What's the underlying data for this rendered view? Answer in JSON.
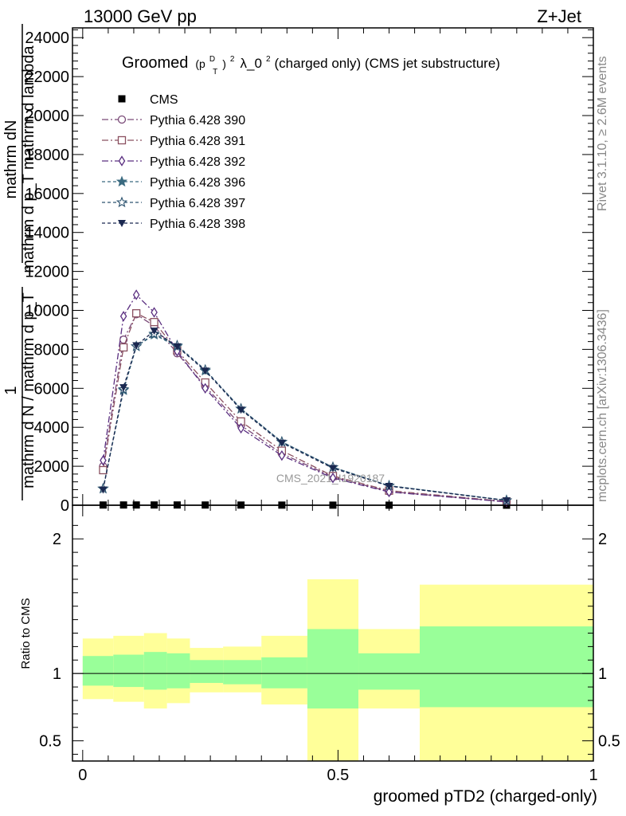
{
  "header": {
    "left": "13000 GeV pp",
    "right": "Z+Jet"
  },
  "side_labels": {
    "rivet": "Rivet 3.1.10, ≥ 2.6M events",
    "mcplots": "mcplots.cern.ch [arXiv:1306.3436]"
  },
  "watermark": "CMS_2021_I1920187",
  "chart_data": [
    {
      "type": "line",
      "title": {
        "prefix": "Groomed",
        "math_p": "(p",
        "math_sup_d": "D",
        "math_sub_t": "T",
        "math_close": ")",
        "math_sup_2": "2",
        "math_lambda": "λ_0",
        "math_sup_2b": "2",
        "suffix": " (charged only) (CMS jet substructure)"
      },
      "ylabel_parts": {
        "numerator": "mathrm dN",
        "denominator": "mathrm d p_T mathrm d lambda",
        "prefactor_num": "1",
        "prefactor_den": "mathrm d N / mathrm d p_T"
      },
      "ylim": [
        0,
        24500
      ],
      "yticks": [
        0,
        2000,
        4000,
        6000,
        8000,
        10000,
        12000,
        14000,
        16000,
        18000,
        20000,
        22000,
        24000
      ],
      "ytick_labels": [
        "0",
        "2000",
        "4000",
        "6000",
        "8000",
        "10000",
        "12000",
        "14000",
        "16000",
        "18000",
        "20000",
        "22000",
        "24000"
      ],
      "xlim": [
        -0.02,
        1.0
      ],
      "x": [
        0.04,
        0.08,
        0.105,
        0.14,
        0.185,
        0.24,
        0.31,
        0.39,
        0.49,
        0.6,
        0.83
      ],
      "series": [
        {
          "name": "CMS",
          "marker": "filled-square",
          "color": "#000000",
          "dash": "",
          "values": [
            10,
            12,
            12,
            12,
            12,
            10,
            8,
            6,
            4,
            2,
            1
          ]
        },
        {
          "name": "Pythia 6.428 390",
          "marker": "open-circle",
          "color": "#7a4a78",
          "dash": "8,3,2,3",
          "values": [
            2000,
            8500,
            9800,
            9200,
            7800,
            6100,
            4100,
            2650,
            1450,
            700,
            180
          ]
        },
        {
          "name": "Pythia 6.428 391",
          "marker": "open-square",
          "color": "#8a5060",
          "dash": "8,3,2,3",
          "values": [
            1800,
            8100,
            9850,
            9400,
            7950,
            6300,
            4300,
            2800,
            1500,
            750,
            190
          ]
        },
        {
          "name": "Pythia 6.428 392",
          "marker": "open-diamond",
          "color": "#5a2e80",
          "dash": "8,3,2,3",
          "values": [
            2300,
            9700,
            10800,
            9900,
            7900,
            6000,
            3950,
            2550,
            1400,
            680,
            170
          ]
        },
        {
          "name": "Pythia 6.428 396",
          "marker": "filled-star",
          "color": "#3a6a80",
          "dash": "4,3",
          "values": [
            850,
            5900,
            8150,
            8750,
            8150,
            6900,
            4950,
            3250,
            1950,
            1000,
            250
          ]
        },
        {
          "name": "Pythia 6.428 397",
          "marker": "open-star",
          "color": "#2e5470",
          "dash": "4,3",
          "values": [
            850,
            5950,
            8150,
            8800,
            8200,
            6950,
            4950,
            3250,
            1950,
            1000,
            250
          ]
        },
        {
          "name": "Pythia 6.428 398",
          "marker": "filled-triangle-down",
          "color": "#1a2850",
          "dash": "4,3",
          "values": [
            800,
            6050,
            8200,
            8950,
            8150,
            6900,
            4900,
            3200,
            1900,
            980,
            240
          ]
        }
      ],
      "legend_placement": "top-left"
    },
    {
      "type": "area",
      "ylabel": "Ratio to CMS",
      "xlabel": "groomed pTD2 (charged-only)",
      "ylim": [
        0.35,
        2.25
      ],
      "yticks": [
        0.5,
        1,
        2
      ],
      "ytick_labels": [
        "0.5",
        "1",
        "2"
      ],
      "xlim": [
        -0.02,
        1.0
      ],
      "xticks": [
        0,
        0.5,
        1
      ],
      "xtick_labels": [
        "0",
        "0.5",
        "1"
      ],
      "bins": [
        {
          "lo": 0.0,
          "hi": 0.06,
          "inner": [
            0.91,
            1.13
          ],
          "outer": [
            0.81,
            1.26
          ]
        },
        {
          "lo": 0.06,
          "hi": 0.12,
          "inner": [
            0.9,
            1.14
          ],
          "outer": [
            0.79,
            1.28
          ]
        },
        {
          "lo": 0.12,
          "hi": 0.165,
          "inner": [
            0.88,
            1.16
          ],
          "outer": [
            0.74,
            1.3
          ]
        },
        {
          "lo": 0.165,
          "hi": 0.21,
          "inner": [
            0.89,
            1.15
          ],
          "outer": [
            0.78,
            1.26
          ]
        },
        {
          "lo": 0.21,
          "hi": 0.275,
          "inner": [
            0.93,
            1.1
          ],
          "outer": [
            0.86,
            1.19
          ]
        },
        {
          "lo": 0.275,
          "hi": 0.35,
          "inner": [
            0.92,
            1.1
          ],
          "outer": [
            0.86,
            1.2
          ]
        },
        {
          "lo": 0.35,
          "hi": 0.44,
          "inner": [
            0.89,
            1.12
          ],
          "outer": [
            0.77,
            1.28
          ]
        },
        {
          "lo": 0.44,
          "hi": 0.54,
          "inner": [
            0.74,
            1.33
          ],
          "outer": [
            0.35,
            1.7
          ]
        },
        {
          "lo": 0.54,
          "hi": 0.66,
          "inner": [
            0.88,
            1.15
          ],
          "outer": [
            0.74,
            1.33
          ]
        },
        {
          "lo": 0.66,
          "hi": 1.0,
          "inner": [
            0.75,
            1.35
          ],
          "outer": [
            0.35,
            1.66
          ]
        }
      ],
      "inner_color": "#99ff99",
      "outer_color": "#ffff99"
    }
  ]
}
